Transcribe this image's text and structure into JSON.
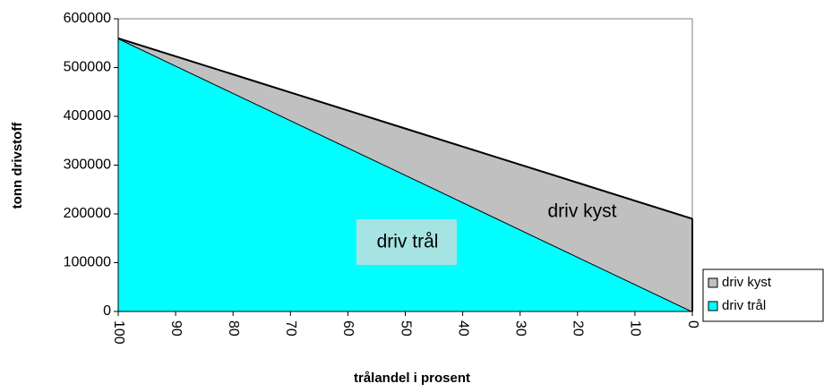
{
  "chart_data": {
    "type": "area",
    "stacked": true,
    "x_label": "trålandel i prosent",
    "y_label": "tonn drivstoff",
    "x": [
      100,
      90,
      80,
      70,
      60,
      50,
      40,
      30,
      20,
      10,
      0
    ],
    "xlim": [
      100,
      0
    ],
    "xticks": [
      100,
      90,
      80,
      70,
      60,
      50,
      40,
      30,
      20,
      10,
      0
    ],
    "ylim": [
      0,
      600000
    ],
    "yticks": [
      0,
      100000,
      200000,
      300000,
      400000,
      500000,
      600000
    ],
    "series": [
      {
        "name": "driv trål",
        "color": "#00ffff",
        "values": [
          560000,
          504000,
          448000,
          392000,
          336000,
          280000,
          224000,
          168000,
          112000,
          56000,
          0
        ]
      },
      {
        "name": "driv kyst",
        "color": "#c0c0c0",
        "values": [
          0,
          19000,
          38000,
          57000,
          76000,
          95000,
          114000,
          133000,
          152000,
          171000,
          190000
        ]
      }
    ],
    "annotations": [
      "driv kyst",
      "driv trål"
    ],
    "legend": "right"
  }
}
